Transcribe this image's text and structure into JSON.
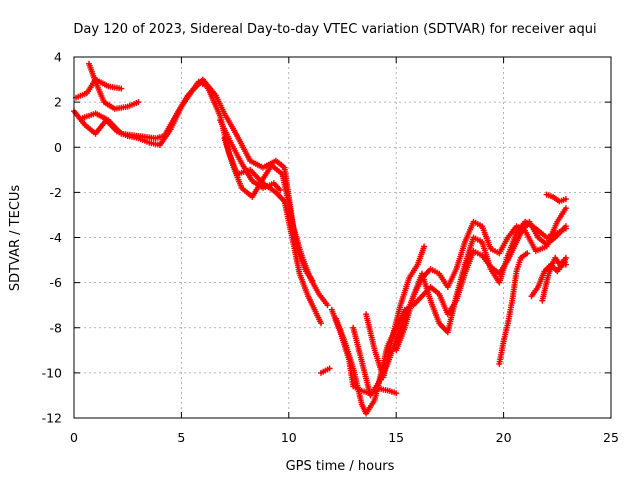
{
  "chart_data": {
    "type": "scatter",
    "title": "Day 120 of 2023, Sidereal Day-to-day VTEC variation (SDTVAR) for receiver aqui",
    "xlabel": "GPS time / hours",
    "ylabel": "SDTVAR / TECUs",
    "xlim": [
      0,
      25
    ],
    "ylim": [
      -12,
      4
    ],
    "xticks": [
      "0",
      "5",
      "10",
      "15",
      "20",
      "25"
    ],
    "yticks": [
      "4",
      "2",
      "0",
      "-2",
      "-4",
      "-6",
      "-8",
      "-10",
      "-12"
    ],
    "grid": true,
    "color": "#ff0000",
    "series": [
      {
        "name": "track-1",
        "points": [
          [
            0.0,
            1.6
          ],
          [
            0.5,
            1.0
          ],
          [
            1.0,
            0.6
          ],
          [
            1.5,
            1.2
          ],
          [
            2.0,
            0.7
          ],
          [
            2.5,
            0.5
          ],
          [
            3.0,
            0.4
          ],
          [
            3.5,
            0.2
          ],
          [
            4.0,
            0.1
          ],
          [
            4.5,
            0.8
          ],
          [
            5.0,
            1.8
          ],
          [
            5.5,
            2.5
          ],
          [
            5.8,
            2.9
          ],
          [
            6.2,
            2.7
          ],
          [
            6.8,
            1.4
          ],
          [
            7.2,
            -0.2
          ],
          [
            7.6,
            -1.2
          ],
          [
            8.2,
            -1.0
          ],
          [
            8.8,
            -1.6
          ],
          [
            9.4,
            -2.0
          ],
          [
            9.8,
            -2.4
          ],
          [
            10.2,
            -4.2
          ],
          [
            10.5,
            -5.6
          ],
          [
            10.9,
            -6.6
          ],
          [
            11.2,
            -7.2
          ],
          [
            11.5,
            -7.8
          ]
        ]
      },
      {
        "name": "track-2",
        "points": [
          [
            0.1,
            2.2
          ],
          [
            0.6,
            2.4
          ],
          [
            1.0,
            3.0
          ],
          [
            1.6,
            2.7
          ],
          [
            2.2,
            2.6
          ]
        ]
      },
      {
        "name": "track-3",
        "points": [
          [
            0.7,
            3.7
          ],
          [
            1.0,
            2.9
          ],
          [
            1.4,
            2.0
          ],
          [
            1.9,
            1.7
          ],
          [
            2.5,
            1.8
          ],
          [
            3.0,
            2.0
          ]
        ]
      },
      {
        "name": "track-4",
        "points": [
          [
            0.4,
            1.3
          ],
          [
            1.0,
            1.5
          ],
          [
            1.6,
            1.2
          ],
          [
            2.2,
            0.6
          ],
          [
            3.0,
            0.5
          ],
          [
            3.8,
            0.4
          ],
          [
            4.2,
            0.5
          ],
          [
            4.8,
            1.5
          ],
          [
            5.3,
            2.3
          ],
          [
            6.0,
            3.0
          ],
          [
            6.6,
            2.3
          ],
          [
            7.0,
            1.5
          ],
          [
            7.6,
            0.5
          ],
          [
            8.2,
            -0.6
          ],
          [
            8.8,
            -0.9
          ],
          [
            9.4,
            -0.6
          ],
          [
            9.8,
            -0.9
          ],
          [
            10.2,
            -3.5
          ],
          [
            10.6,
            -4.8
          ],
          [
            11.0,
            -5.8
          ],
          [
            11.4,
            -6.5
          ],
          [
            11.8,
            -7.0
          ]
        ]
      },
      {
        "name": "track-5",
        "points": [
          [
            6.8,
            1.2
          ],
          [
            7.3,
            0.2
          ],
          [
            7.8,
            -0.7
          ],
          [
            8.3,
            -1.5
          ],
          [
            8.8,
            -1.8
          ],
          [
            9.3,
            -1.6
          ],
          [
            9.6,
            -1.9
          ]
        ]
      },
      {
        "name": "track-6",
        "points": [
          [
            7.0,
            0.4
          ],
          [
            7.4,
            -0.8
          ],
          [
            7.8,
            -1.8
          ],
          [
            8.3,
            -2.2
          ],
          [
            8.8,
            -1.4
          ],
          [
            9.2,
            -0.8
          ],
          [
            9.7,
            -1.2
          ],
          [
            10.0,
            -2.5
          ],
          [
            10.4,
            -4.5
          ],
          [
            10.8,
            -5.5
          ],
          [
            11.1,
            -5.9
          ]
        ]
      },
      {
        "name": "track-7",
        "points": [
          [
            11.5,
            -10.0
          ],
          [
            11.9,
            -9.8
          ]
        ]
      },
      {
        "name": "track-8",
        "points": [
          [
            12.0,
            -7.2
          ],
          [
            12.4,
            -8.2
          ],
          [
            12.8,
            -9.4
          ],
          [
            13.0,
            -10.6
          ],
          [
            13.4,
            -10.8
          ],
          [
            13.8,
            -10.9
          ],
          [
            14.2,
            -10.7
          ],
          [
            14.7,
            -10.8
          ],
          [
            15.0,
            -10.9
          ]
        ]
      },
      {
        "name": "track-9",
        "points": [
          [
            12.2,
            -7.6
          ],
          [
            12.6,
            -8.6
          ],
          [
            13.0,
            -9.8
          ],
          [
            13.4,
            -11.4
          ],
          [
            13.6,
            -11.8
          ],
          [
            14.0,
            -11.2
          ],
          [
            14.3,
            -10.0
          ],
          [
            14.6,
            -8.8
          ],
          [
            15.0,
            -8.0
          ],
          [
            15.4,
            -7.2
          ],
          [
            15.8,
            -7.0
          ],
          [
            16.2,
            -6.6
          ],
          [
            16.6,
            -6.2
          ],
          [
            17.0,
            -6.5
          ],
          [
            17.4,
            -7.4
          ],
          [
            17.8,
            -6.8
          ],
          [
            18.2,
            -5.6
          ],
          [
            18.6,
            -4.6
          ],
          [
            19.0,
            -4.8
          ],
          [
            19.4,
            -5.3
          ],
          [
            19.8,
            -5.6
          ],
          [
            20.2,
            -5.0
          ],
          [
            20.8,
            -3.8
          ],
          [
            21.2,
            -3.3
          ],
          [
            21.6,
            -4.0
          ],
          [
            22.0,
            -4.3
          ],
          [
            22.4,
            -4.0
          ],
          [
            22.9,
            -3.5
          ]
        ]
      },
      {
        "name": "track-10",
        "points": [
          [
            13.0,
            -8.0
          ],
          [
            13.4,
            -9.5
          ],
          [
            13.8,
            -11.0
          ],
          [
            14.2,
            -10.4
          ],
          [
            14.6,
            -9.6
          ],
          [
            15.0,
            -8.5
          ],
          [
            15.4,
            -7.6
          ],
          [
            15.8,
            -6.6
          ],
          [
            16.2,
            -5.8
          ],
          [
            16.6,
            -5.4
          ],
          [
            17.0,
            -5.6
          ],
          [
            17.4,
            -6.2
          ],
          [
            17.8,
            -5.4
          ],
          [
            18.2,
            -4.2
          ],
          [
            18.6,
            -3.3
          ],
          [
            19.0,
            -3.5
          ],
          [
            19.4,
            -4.5
          ],
          [
            19.8,
            -4.7
          ],
          [
            20.2,
            -4.0
          ],
          [
            20.6,
            -3.5
          ],
          [
            21.0,
            -3.7
          ],
          [
            21.5,
            -4.6
          ],
          [
            22.0,
            -4.4
          ],
          [
            22.5,
            -3.3
          ],
          [
            22.9,
            -2.7
          ]
        ]
      },
      {
        "name": "track-11",
        "points": [
          [
            13.6,
            -7.4
          ],
          [
            14.0,
            -9.0
          ],
          [
            14.4,
            -10.2
          ],
          [
            14.8,
            -8.5
          ],
          [
            15.2,
            -7.0
          ],
          [
            15.6,
            -5.8
          ],
          [
            16.0,
            -5.2
          ],
          [
            16.3,
            -4.4
          ]
        ]
      },
      {
        "name": "track-12",
        "points": [
          [
            15.0,
            -9.0
          ],
          [
            15.4,
            -8.0
          ],
          [
            15.8,
            -6.6
          ],
          [
            16.2,
            -5.6
          ],
          [
            16.6,
            -6.8
          ],
          [
            17.0,
            -7.8
          ],
          [
            17.4,
            -8.2
          ],
          [
            17.8,
            -6.6
          ],
          [
            18.2,
            -5.2
          ],
          [
            18.6,
            -4.0
          ],
          [
            19.0,
            -4.2
          ],
          [
            19.4,
            -5.4
          ],
          [
            19.8,
            -6.0
          ],
          [
            20.2,
            -4.8
          ],
          [
            20.6,
            -3.8
          ],
          [
            21.0,
            -3.3
          ],
          [
            21.5,
            -3.6
          ],
          [
            22.0,
            -4.0
          ],
          [
            22.5,
            -3.8
          ],
          [
            22.9,
            -3.6
          ]
        ]
      },
      {
        "name": "track-13",
        "points": [
          [
            19.8,
            -9.6
          ],
          [
            20.0,
            -8.6
          ],
          [
            20.2,
            -7.8
          ],
          [
            20.4,
            -6.8
          ],
          [
            20.6,
            -5.5
          ],
          [
            20.8,
            -4.9
          ],
          [
            21.1,
            -4.7
          ]
        ]
      },
      {
        "name": "track-14",
        "points": [
          [
            21.3,
            -6.6
          ],
          [
            21.6,
            -6.2
          ],
          [
            21.9,
            -5.5
          ],
          [
            22.2,
            -5.2
          ],
          [
            22.5,
            -5.5
          ],
          [
            22.8,
            -5.0
          ],
          [
            22.9,
            -5.2
          ]
        ]
      },
      {
        "name": "track-15",
        "points": [
          [
            21.8,
            -6.8
          ],
          [
            22.1,
            -5.6
          ],
          [
            22.4,
            -4.9
          ],
          [
            22.7,
            -5.3
          ],
          [
            22.9,
            -4.9
          ]
        ]
      },
      {
        "name": "track-16",
        "points": [
          [
            22.0,
            -2.1
          ],
          [
            22.3,
            -2.2
          ],
          [
            22.6,
            -2.4
          ],
          [
            22.9,
            -2.3
          ]
        ]
      }
    ]
  }
}
